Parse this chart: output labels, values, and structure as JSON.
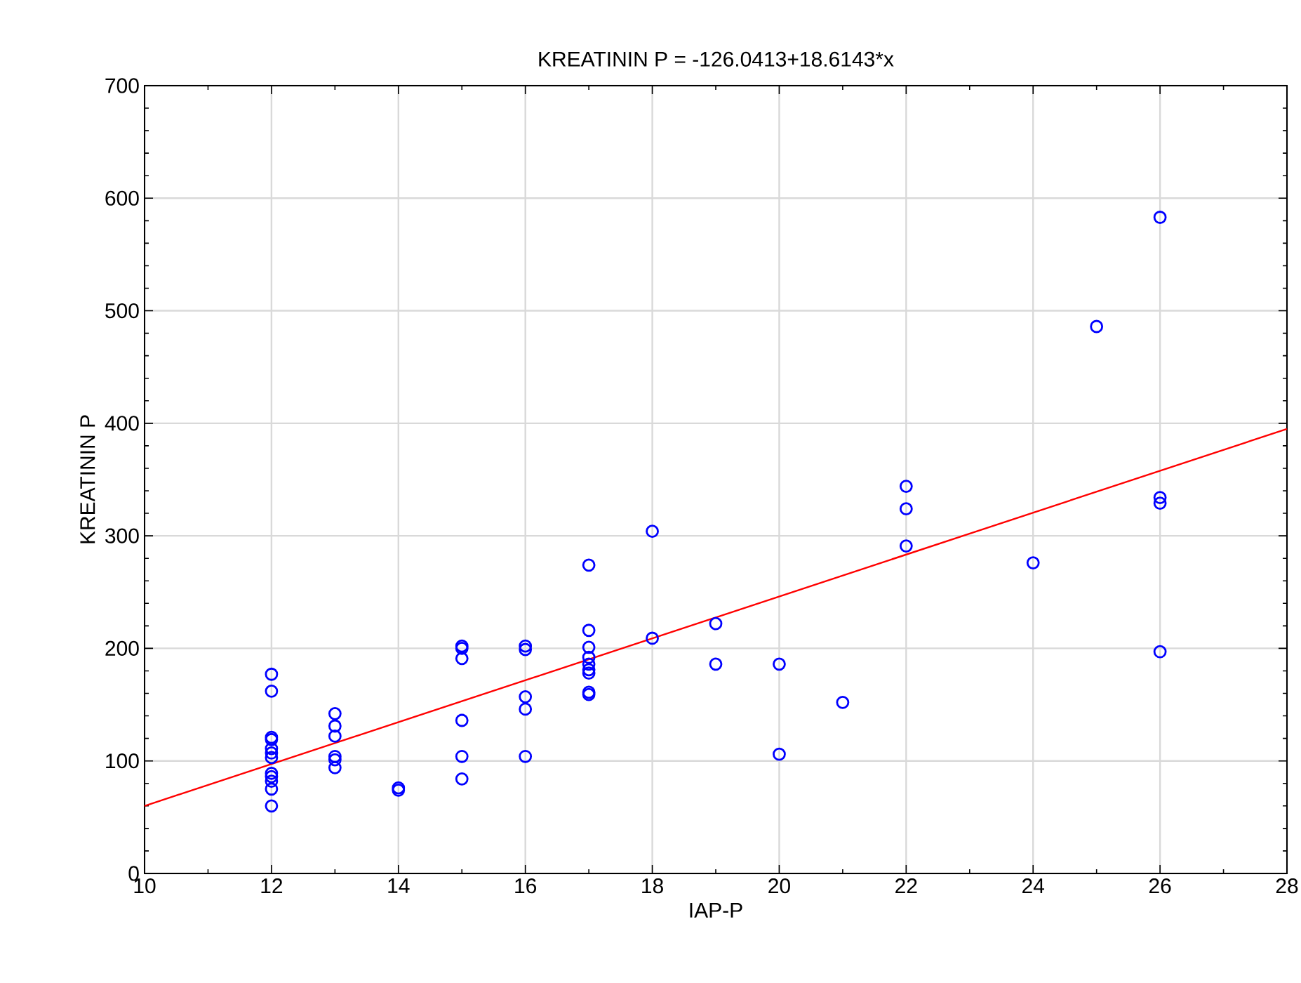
{
  "chart_data": {
    "type": "scatter",
    "title": "KREATININ P = -126.0413+18.6143*x",
    "xlabel": "IAP-P",
    "ylabel": "KREATININ P",
    "xlim": [
      10,
      28
    ],
    "xticks": [
      10,
      12,
      14,
      16,
      18,
      20,
      22,
      24,
      26,
      28
    ],
    "ylim": [
      0,
      700
    ],
    "yticks": [
      0,
      100,
      200,
      300,
      400,
      500,
      600,
      700
    ],
    "grid": true,
    "marker": "circle",
    "series": [
      {
        "color": "#0000ff",
        "x": [
          12,
          12,
          12,
          12,
          12,
          12,
          12,
          12,
          12,
          12,
          12,
          12,
          13,
          13,
          13,
          13,
          13,
          13,
          14,
          14,
          15,
          15,
          15,
          15,
          15,
          15,
          16,
          16,
          16,
          16,
          16,
          17,
          17,
          17,
          17,
          17,
          17,
          17,
          17,
          17,
          18,
          18,
          19,
          19,
          20,
          20,
          21,
          22,
          22,
          22,
          24,
          25,
          26,
          26,
          26,
          26
        ],
        "values": [
          177,
          162,
          121,
          119,
          111,
          107,
          103,
          89,
          86,
          82,
          75,
          60,
          142,
          131,
          122,
          104,
          101,
          94,
          76,
          74,
          202,
          200,
          191,
          136,
          104,
          84,
          202,
          199,
          157,
          146,
          104,
          274,
          216,
          201,
          192,
          186,
          181,
          178,
          161,
          159,
          304,
          209,
          222,
          186,
          186,
          106,
          152,
          344,
          324,
          291,
          276,
          486,
          583,
          334,
          329,
          197
        ]
      },
      {
        "type": "line",
        "marker": "none",
        "color": "#ff0000",
        "x": [
          10,
          28
        ],
        "values": [
          60,
          395
        ]
      }
    ]
  }
}
